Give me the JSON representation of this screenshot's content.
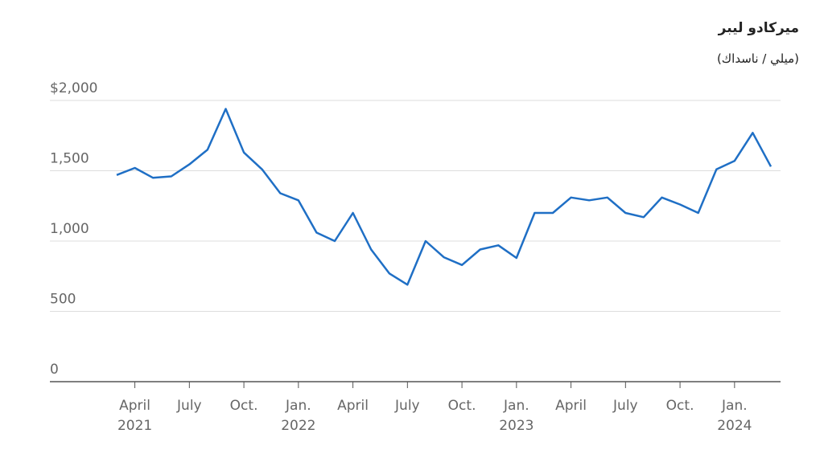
{
  "chart_data": {
    "type": "line",
    "title": "ميركادو ليبر",
    "subtitle": "(ميلي / ناسداك)",
    "x": [
      "2021-03",
      "2021-04",
      "2021-05",
      "2021-06",
      "2021-07",
      "2021-08",
      "2021-09",
      "2021-10",
      "2021-11",
      "2021-12",
      "2022-01",
      "2022-02",
      "2022-03",
      "2022-04",
      "2022-05",
      "2022-06",
      "2022-07",
      "2022-08",
      "2022-09",
      "2022-10",
      "2022-11",
      "2022-12",
      "2023-01",
      "2023-02",
      "2023-03",
      "2023-04",
      "2023-05",
      "2023-06",
      "2023-07",
      "2023-08",
      "2023-09",
      "2023-10",
      "2023-11",
      "2023-12",
      "2024-01",
      "2024-02",
      "2024-03"
    ],
    "series": [
      {
        "color": "#1f6fc5",
        "values": [
          1470,
          1520,
          1450,
          1460,
          1545,
          1650,
          1940,
          1630,
          1510,
          1340,
          1290,
          1060,
          1000,
          1200,
          940,
          770,
          690,
          1000,
          885,
          830,
          940,
          970,
          880,
          1200,
          1200,
          1310,
          1290,
          1310,
          1200,
          1170,
          1310,
          1260,
          1200,
          1510,
          1570,
          1770,
          1530
        ]
      }
    ],
    "xlim": [
      "2021-03",
      "2024-03"
    ],
    "xticks": [
      {
        "value": "2021-04",
        "label": "April",
        "year": "2021"
      },
      {
        "value": "2021-07",
        "label": "July"
      },
      {
        "value": "2021-10",
        "label": "Oct."
      },
      {
        "value": "2022-01",
        "label": "Jan.",
        "year": "2022"
      },
      {
        "value": "2022-04",
        "label": "April"
      },
      {
        "value": "2022-07",
        "label": "July"
      },
      {
        "value": "2022-10",
        "label": "Oct."
      },
      {
        "value": "2023-01",
        "label": "Jan.",
        "year": "2023"
      },
      {
        "value": "2023-04",
        "label": "April"
      },
      {
        "value": "2023-07",
        "label": "July"
      },
      {
        "value": "2023-10",
        "label": "Oct."
      },
      {
        "value": "2024-01",
        "label": "Jan.",
        "year": "2024"
      }
    ],
    "ylim": [
      0,
      2000
    ],
    "yticks": [
      0,
      500,
      {
        "value": 1000,
        "label": "1,000"
      },
      {
        "value": 1500,
        "label": "1,500"
      },
      {
        "value": 2000,
        "label": "$2,000"
      }
    ],
    "grid": true
  }
}
